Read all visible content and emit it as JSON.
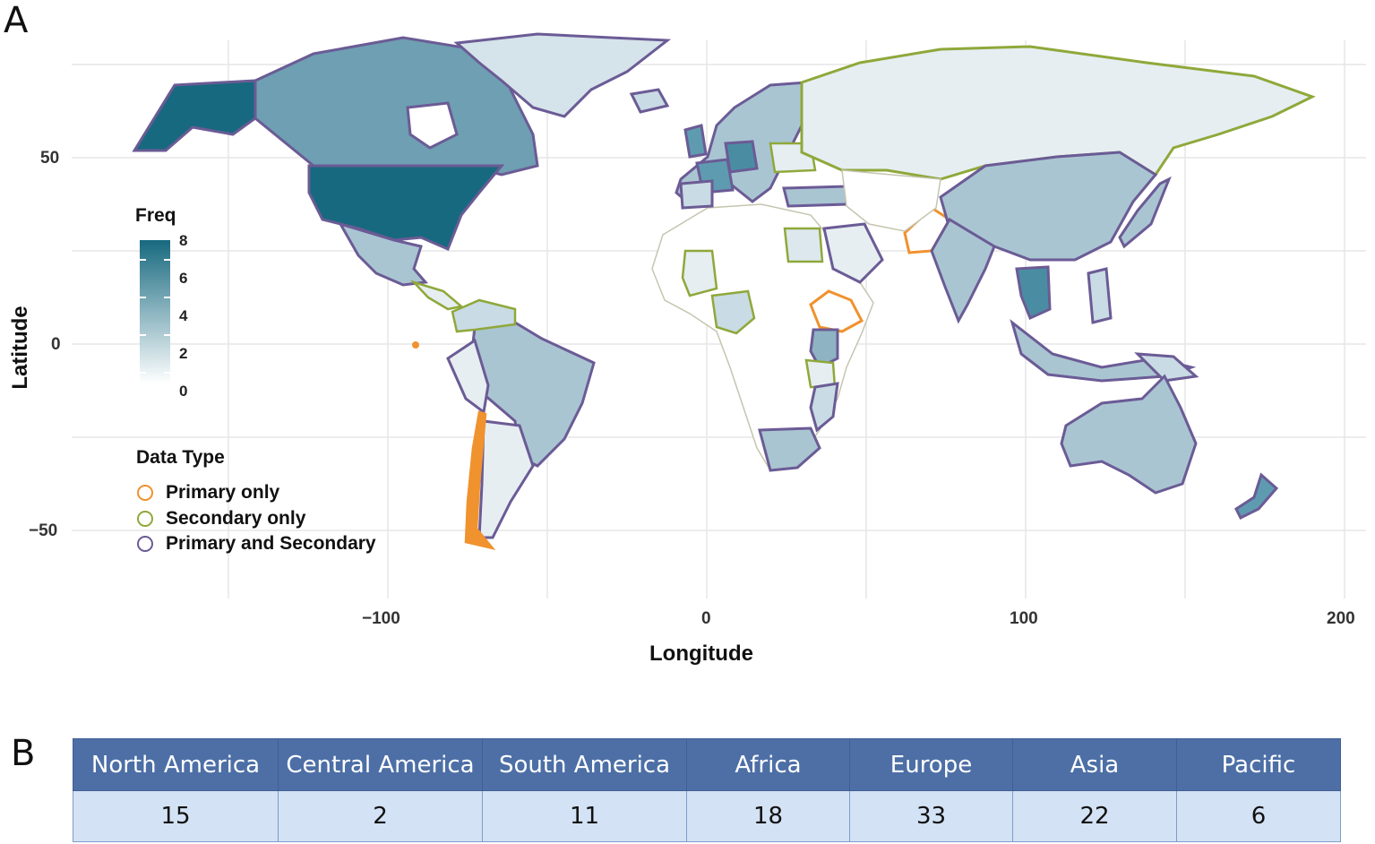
{
  "panels": {
    "map_letter": "A",
    "table_letter": "B"
  },
  "map": {
    "axes": {
      "xlabel": "Longitude",
      "ylabel": "Latitude",
      "x_ticks": [
        "−100",
        "0",
        "100",
        "200"
      ],
      "y_ticks": [
        "50",
        "0",
        "−50"
      ]
    },
    "freq_legend": {
      "title": "Freq",
      "ticks": [
        "8",
        "6",
        "4",
        "2",
        "0"
      ],
      "color_low": "#ffffff",
      "color_high": "#17697f"
    },
    "data_type_legend": {
      "title": "Data Type",
      "items": [
        {
          "label": "Primary only",
          "color": "#f0922e"
        },
        {
          "label": "Secondary only",
          "color": "#8fa83a"
        },
        {
          "label": "Primary and Secondary",
          "color": "#6b5b95"
        }
      ]
    },
    "colors": {
      "outline_primary_secondary": "#6b5b95",
      "outline_secondary": "#8fa83a",
      "outline_primary": "#f0922e",
      "no_data_outline": "#c5c5b0"
    }
  },
  "table": {
    "headers": [
      "North America",
      "Central America",
      "South America",
      "Africa",
      "Europe",
      "Asia",
      "Pacific"
    ],
    "values": [
      "15",
      "2",
      "11",
      "18",
      "33",
      "22",
      "6"
    ]
  }
}
